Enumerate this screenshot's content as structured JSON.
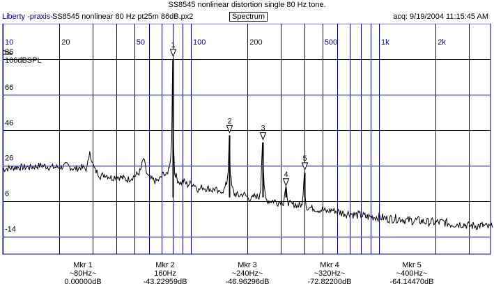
{
  "title": "SS8545 nonlinear distortion single 80 Hz tone.",
  "header": {
    "app": "Liberty -praxis-",
    "file": "SS8545 nonlinear 80 Hz pt25m 86dB.px2",
    "mode_button": "Spectrum",
    "acq": "acq: 9/19/2004 11:15:45 AM"
  },
  "colors": {
    "grid": "#00008b",
    "trace": "#000000",
    "label": "#00008b"
  },
  "chart_data": {
    "type": "line",
    "x_scale": "log",
    "xlim": [
      10,
      4000
    ],
    "ylim": [
      -24,
      106
    ],
    "y_unit_label": "106dBSPL",
    "x_ticks": [
      {
        "value": 10,
        "label": "10"
      },
      {
        "value": 20,
        "label": "20"
      },
      {
        "value": 50,
        "label": "50"
      },
      {
        "value": 100,
        "label": "100"
      },
      {
        "value": 200,
        "label": "200"
      },
      {
        "value": 500,
        "label": "500"
      },
      {
        "value": 1000,
        "label": "1k"
      },
      {
        "value": 2000,
        "label": "2k"
      }
    ],
    "x_grid": [
      10,
      20,
      30,
      40,
      50,
      60,
      70,
      80,
      90,
      100,
      200,
      300,
      400,
      500,
      600,
      700,
      800,
      900,
      1000,
      2000,
      3000
    ],
    "y_ticks": [
      {
        "value": 86,
        "label": "86"
      },
      {
        "value": 66,
        "label": "66"
      },
      {
        "value": 46,
        "label": "46"
      },
      {
        "value": 26,
        "label": "26"
      },
      {
        "value": 6,
        "label": "6"
      },
      {
        "value": -14,
        "label": "-14"
      }
    ],
    "series": [
      {
        "x": [
          10,
          12,
          14,
          16,
          18,
          20,
          22,
          24,
          26,
          28,
          29,
          30,
          31,
          32,
          33,
          35,
          38,
          40,
          43,
          46,
          48,
          50,
          52,
          54,
          56,
          58,
          60,
          62,
          65,
          68,
          70,
          72,
          74,
          76,
          78,
          79,
          80,
          81,
          82,
          85,
          88,
          92,
          96,
          100,
          105,
          110,
          115,
          120,
          125,
          130,
          135,
          140,
          145,
          150,
          155,
          158,
          160,
          162,
          165,
          170,
          180,
          190,
          200,
          210,
          220,
          230,
          235,
          240,
          245,
          250,
          260,
          270,
          280,
          290,
          300,
          310,
          315,
          320,
          325,
          330,
          340,
          350,
          360,
          370,
          380,
          390,
          395,
          400,
          405,
          410,
          420,
          430,
          450,
          470,
          500,
          530,
          560,
          600,
          650,
          700,
          750,
          800,
          850,
          900,
          1000,
          1100,
          1200,
          1300,
          1400,
          1500,
          1600,
          1800,
          2000,
          2200,
          2400,
          2600,
          2800,
          3000,
          3200,
          3400,
          3600,
          3800,
          4000
        ],
        "y": [
          24,
          25,
          25,
          26,
          25,
          25,
          26,
          24,
          25,
          24,
          34,
          27,
          23,
          22,
          20,
          21,
          19,
          20,
          19,
          18,
          19,
          20,
          21,
          23,
          30,
          22,
          19,
          18,
          17,
          18,
          20,
          22,
          20,
          24,
          30,
          40,
          86,
          35,
          22,
          18,
          16,
          17,
          15,
          16,
          15,
          12,
          14,
          13,
          13,
          12,
          13,
          10,
          12,
          12,
          16,
          24,
          43,
          22,
          14,
          10,
          9,
          10,
          8,
          7,
          9,
          8,
          14,
          39,
          13,
          7,
          6,
          6,
          6,
          5,
          6,
          5,
          10,
          13,
          9,
          5,
          4,
          4,
          4,
          3,
          4,
          3,
          12,
          22,
          10,
          3,
          2,
          2,
          2,
          1,
          1,
          0,
          1,
          0,
          -1,
          -1,
          -2,
          -2,
          -3,
          -3,
          -3,
          -4,
          -4,
          -4,
          -5,
          -5,
          -5,
          -6,
          -6,
          -6,
          -7,
          -7,
          -7,
          -8,
          -8,
          -8,
          -8,
          -9,
          -9
        ]
      }
    ],
    "markers": [
      {
        "label": "1",
        "x": 80,
        "y": 86
      },
      {
        "label": "2",
        "x": 160,
        "y": 43
      },
      {
        "label": "3",
        "x": 240,
        "y": 39
      },
      {
        "label": "4",
        "x": 320,
        "y": 13
      },
      {
        "label": "5",
        "x": 400,
        "y": 22
      }
    ]
  },
  "marker_readouts": [
    {
      "name": "Mkr 1",
      "freq": "~80Hz~",
      "value": "0.00000dB"
    },
    {
      "name": "Mkr 2",
      "freq": "160Hz",
      "value": "-43.22959dB"
    },
    {
      "name": "Mkr 3",
      "freq": "~240Hz~",
      "value": "-46.96296dB"
    },
    {
      "name": "Mkr 4",
      "freq": "~320Hz~",
      "value": "-72.82200dB"
    },
    {
      "name": "Mkr 5",
      "freq": "~400Hz~",
      "value": "-64.14470dB"
    }
  ]
}
